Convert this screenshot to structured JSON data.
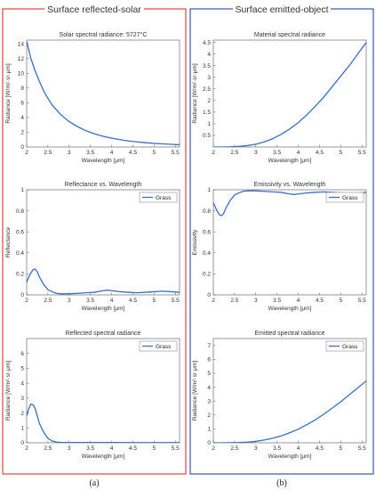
{
  "figure": {
    "panels": [
      {
        "title": "Surface reflected-solar",
        "border_color": "#e2423f",
        "caption": "(a)"
      },
      {
        "title": "Surface emitted-object",
        "border_color": "#3d55b0",
        "caption": "(b)"
      }
    ],
    "line_color": "#3b6fc2"
  },
  "chart_data": [
    {
      "type": "line",
      "title": "Solar spectral radiance: 5727°C",
      "xlabel": "Wavelength [μm]",
      "ylabel": "Radiance [W/m²·sr·μm]",
      "xlim": [
        2,
        5.6
      ],
      "ylim": [
        0,
        14.5
      ],
      "xticks": [
        2,
        2.5,
        3,
        3.5,
        4,
        4.5,
        5,
        5.5
      ],
      "yticks": [
        0,
        2,
        4,
        6,
        8,
        10,
        12,
        14
      ],
      "legend": null,
      "series": [
        {
          "x": [
            2.0,
            2.1,
            2.2,
            2.3,
            2.4,
            2.5,
            2.6,
            2.8,
            3.0,
            3.2,
            3.4,
            3.6,
            3.8,
            4.0,
            4.2,
            4.4,
            4.6,
            4.8,
            5.0,
            5.2,
            5.4,
            5.6
          ],
          "y": [
            14.3,
            12.0,
            10.3,
            8.9,
            7.6,
            6.6,
            5.7,
            4.4,
            3.45,
            2.75,
            2.2,
            1.78,
            1.45,
            1.2,
            1.0,
            0.82,
            0.69,
            0.58,
            0.49,
            0.42,
            0.36,
            0.31
          ]
        }
      ]
    },
    {
      "type": "line",
      "title": "Material spectral radiance",
      "xlabel": "Wavelength [μm]",
      "ylabel": "Radiance [W/m²·sr·μm]",
      "xlim": [
        2,
        5.6
      ],
      "ylim": [
        0,
        4.6
      ],
      "xticks": [
        2,
        2.5,
        3,
        3.5,
        4,
        4.5,
        5,
        5.5
      ],
      "yticks": [
        0.5,
        1,
        1.5,
        2,
        2.5,
        3,
        3.5,
        4,
        4.5
      ],
      "legend": null,
      "series": [
        {
          "x": [
            2.0,
            2.2,
            2.4,
            2.6,
            2.8,
            3.0,
            3.2,
            3.4,
            3.6,
            3.8,
            4.0,
            4.2,
            4.4,
            4.6,
            4.8,
            5.0,
            5.2,
            5.4,
            5.6
          ],
          "y": [
            0.0,
            0.0,
            0.01,
            0.03,
            0.06,
            0.12,
            0.22,
            0.36,
            0.55,
            0.78,
            1.05,
            1.38,
            1.75,
            2.15,
            2.6,
            3.05,
            3.5,
            4.0,
            4.5
          ]
        }
      ]
    },
    {
      "type": "line",
      "title": "Reflectance vs. Wavelength",
      "xlabel": "Wavelength [μm]",
      "ylabel": "Reflectance",
      "xlim": [
        2,
        5.6
      ],
      "ylim": [
        0,
        1
      ],
      "xticks": [
        2,
        2.5,
        3,
        3.5,
        4,
        4.5,
        5,
        5.5
      ],
      "yticks": [
        0,
        0.2,
        0.4,
        0.6,
        0.8,
        1
      ],
      "legend": "top-right",
      "series": [
        {
          "name": "Grass",
          "x": [
            2.0,
            2.05,
            2.1,
            2.15,
            2.2,
            2.25,
            2.3,
            2.4,
            2.5,
            2.55,
            2.6,
            2.7,
            2.8,
            3.0,
            3.2,
            3.4,
            3.6,
            3.8,
            3.9,
            4.0,
            4.2,
            4.4,
            4.6,
            4.8,
            5.0,
            5.2,
            5.4,
            5.6
          ],
          "y": [
            0.12,
            0.17,
            0.21,
            0.24,
            0.245,
            0.22,
            0.17,
            0.1,
            0.05,
            0.04,
            0.03,
            0.015,
            0.01,
            0.01,
            0.015,
            0.02,
            0.025,
            0.04,
            0.045,
            0.04,
            0.03,
            0.025,
            0.02,
            0.025,
            0.03,
            0.035,
            0.03,
            0.025
          ]
        }
      ]
    },
    {
      "type": "line",
      "title": "Emissivity vs. Wavelength",
      "xlabel": "Wavelength [μm]",
      "ylabel": "Emissivity",
      "xlim": [
        2,
        5.6
      ],
      "ylim": [
        0,
        1
      ],
      "xticks": [
        2,
        2.5,
        3,
        3.5,
        4,
        4.5,
        5,
        5.5
      ],
      "yticks": [
        0,
        0.2,
        0.4,
        0.6,
        0.8,
        1
      ],
      "legend": "top-right",
      "series": [
        {
          "name": "Grass",
          "x": [
            2.0,
            2.05,
            2.1,
            2.15,
            2.2,
            2.25,
            2.3,
            2.4,
            2.5,
            2.55,
            2.6,
            2.7,
            2.8,
            3.0,
            3.2,
            3.4,
            3.6,
            3.8,
            3.9,
            4.0,
            4.2,
            4.4,
            4.6,
            4.8,
            5.0,
            5.2,
            5.4,
            5.6
          ],
          "y": [
            0.88,
            0.83,
            0.79,
            0.76,
            0.755,
            0.78,
            0.83,
            0.9,
            0.95,
            0.96,
            0.97,
            0.985,
            0.99,
            0.99,
            0.985,
            0.98,
            0.975,
            0.96,
            0.955,
            0.96,
            0.97,
            0.975,
            0.98,
            0.975,
            0.97,
            0.965,
            0.97,
            0.975
          ]
        }
      ]
    },
    {
      "type": "line",
      "title": "Reflected spectral radiance",
      "xlabel": "Wavelength [μm]",
      "ylabel": "Radiance [W/m²·sr·μm]",
      "xlim": [
        2,
        5.6
      ],
      "ylim": [
        0,
        7
      ],
      "xticks": [
        2,
        2.5,
        3,
        3.5,
        4,
        4.5,
        5,
        5.5
      ],
      "yticks": [
        0,
        1,
        2,
        3,
        4,
        5,
        6
      ],
      "legend": "top-right",
      "series": [
        {
          "name": "Grass",
          "x": [
            2.0,
            2.05,
            2.1,
            2.15,
            2.2,
            2.25,
            2.3,
            2.4,
            2.5,
            2.6,
            2.7,
            2.8,
            3.0,
            3.5,
            4.0,
            4.5,
            5.0,
            5.6
          ],
          "y": [
            1.8,
            2.3,
            2.6,
            2.55,
            2.3,
            1.8,
            1.3,
            0.7,
            0.3,
            0.12,
            0.05,
            0.03,
            0.02,
            0.02,
            0.02,
            0.015,
            0.015,
            0.01
          ]
        }
      ]
    },
    {
      "type": "line",
      "title": "Emitted spectral radiance",
      "xlabel": "Wavelength [μm]",
      "ylabel": "Radiance [W/m²·sr·μm]",
      "xlim": [
        2,
        5.6
      ],
      "ylim": [
        0,
        7.5
      ],
      "xticks": [
        2,
        2.5,
        3,
        3.5,
        4,
        4.5,
        5,
        5.5
      ],
      "yticks": [
        0,
        1,
        2,
        3,
        4,
        5,
        6,
        7
      ],
      "legend": "top-right",
      "series": [
        {
          "name": "Grass",
          "x": [
            2.0,
            2.2,
            2.4,
            2.6,
            2.8,
            3.0,
            3.2,
            3.4,
            3.6,
            3.8,
            4.0,
            4.2,
            4.4,
            4.6,
            4.8,
            5.0,
            5.2,
            5.4,
            5.6
          ],
          "y": [
            0.0,
            0.0,
            0.01,
            0.02,
            0.05,
            0.1,
            0.2,
            0.33,
            0.5,
            0.72,
            0.98,
            1.3,
            1.65,
            2.05,
            2.5,
            2.95,
            3.45,
            3.95,
            4.45
          ]
        }
      ]
    }
  ]
}
